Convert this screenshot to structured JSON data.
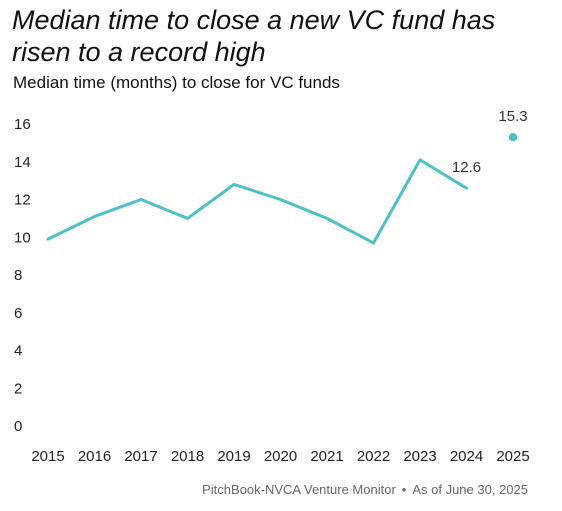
{
  "header": {
    "title": "Median time to close a new VC fund has risen to a record high",
    "subtitle": "Median time (months) to close for VC funds"
  },
  "footer": {
    "source": "PitchBook-NVCA Venture Monitor",
    "separator": "•",
    "date": "As of June 30, 2025"
  },
  "colors": {
    "series": "#4cc0c6",
    "text": "#111111",
    "muted": "#666666"
  },
  "chart_data": {
    "type": "line",
    "title": "Median time to close a new VC fund has risen to a record high",
    "subtitle": "Median time (months) to close for VC funds",
    "xlabel": "",
    "ylabel": "",
    "x": [
      "2015",
      "2016",
      "2017",
      "2018",
      "2019",
      "2020",
      "2021",
      "2022",
      "2023",
      "2024",
      "2025"
    ],
    "series": [
      {
        "values": [
          9.9,
          11.1,
          12.0,
          11.0,
          12.8,
          12.0,
          11.0,
          9.7,
          14.1,
          12.6,
          null
        ]
      },
      {
        "values": [
          null,
          null,
          null,
          null,
          null,
          null,
          null,
          null,
          null,
          null,
          15.3
        ],
        "style": "point"
      }
    ],
    "data_labels": [
      {
        "x": "2024",
        "text": "12.6"
      },
      {
        "x": "2025",
        "text": "15.3"
      }
    ],
    "y_ticks": [
      "0",
      "2",
      "4",
      "6",
      "8",
      "10",
      "12",
      "14",
      "16"
    ],
    "ylim": [
      0,
      16
    ],
    "grid": false,
    "legend": "none"
  }
}
